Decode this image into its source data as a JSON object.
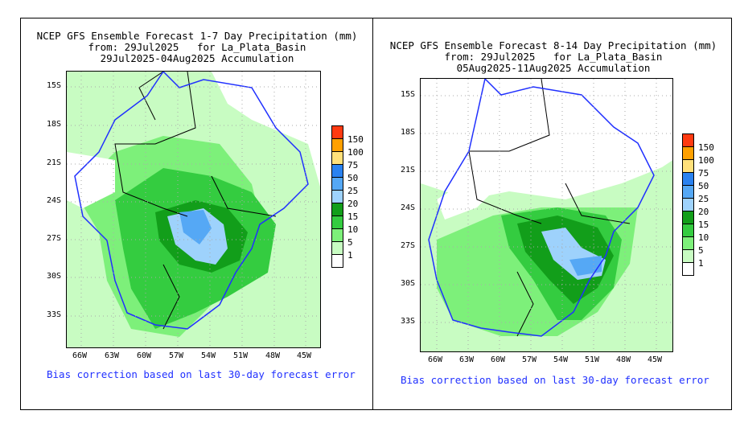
{
  "panels": [
    {
      "title_line1": "NCEP GFS Ensemble Forecast 1-7 Day Precipitation (mm)",
      "title_line2": "from: 29Jul2025   for La_Plata_Basin",
      "title_line3": "29Jul2025-04Aug2025 Accumulation",
      "footer": "Bias correction based on last 30-day forecast error"
    },
    {
      "title_line1": "NCEP GFS Ensemble Forecast 8-14 Day Precipitation (mm)",
      "title_line2": "from: 29Jul2025   for La_Plata_Basin",
      "title_line3": "05Aug2025-11Aug2025 Accumulation",
      "footer": "Bias correction based on last 30-day forecast error"
    }
  ],
  "lat_labels": [
    "15S",
    "18S",
    "21S",
    "24S",
    "27S",
    "30S",
    "33S"
  ],
  "lon_labels": [
    "66W",
    "63W",
    "60W",
    "57W",
    "54W",
    "51W",
    "48W",
    "45W"
  ],
  "legend": {
    "labels": [
      "150",
      "100",
      "75",
      "50",
      "25",
      "20",
      "15",
      "10",
      "5",
      "1"
    ],
    "colors": [
      "#ff3a10",
      "#ffa000",
      "#ffe07a",
      "#2a82f0",
      "#55a8f5",
      "#9ed2fc",
      "#129e1a",
      "#34cc40",
      "#7df07a",
      "#c8fcc2",
      "#ffffff"
    ]
  },
  "colors": {
    "basin_outline": "#2030ff",
    "footer_text": "#2030ff"
  }
}
